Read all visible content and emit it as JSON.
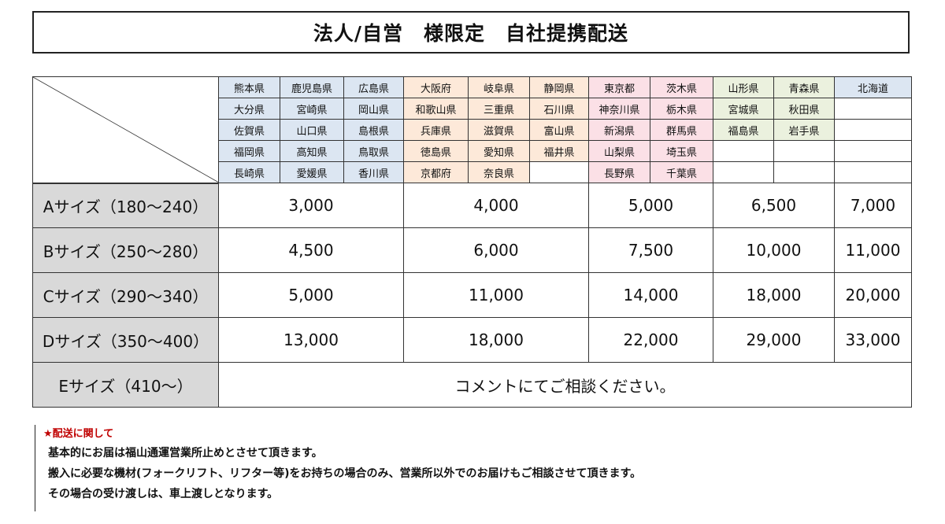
{
  "title": "法人/自営　様限定　自社提携配送",
  "regions": [
    {
      "color": "#dce6f2",
      "columns": [
        [
          "熊本県",
          "大分県",
          "佐賀県",
          "福岡県",
          "長崎県"
        ],
        [
          "鹿児島県",
          "宮崎県",
          "山口県",
          "高知県",
          "愛媛県"
        ],
        [
          "広島県",
          "岡山県",
          "島根県",
          "鳥取県",
          "香川県"
        ]
      ]
    },
    {
      "color": "#fde9d9",
      "columns": [
        [
          "大阪府",
          "和歌山県",
          "兵庫県",
          "徳島県",
          "京都府"
        ],
        [
          "岐阜県",
          "三重県",
          "滋賀県",
          "愛知県",
          "奈良県"
        ],
        [
          "静岡県",
          "石川県",
          "富山県",
          "福井県",
          ""
        ]
      ]
    },
    {
      "color": "#fbe0e6",
      "columns": [
        [
          "東京都",
          "神奈川県",
          "新潟県",
          "山梨県",
          "長野県"
        ],
        [
          "茨木県",
          "栃木県",
          "群馬県",
          "埼玉県",
          "千葉県"
        ]
      ]
    },
    {
      "color": "#ebf1de",
      "columns": [
        [
          "山形県",
          "宮城県",
          "福島県",
          "",
          ""
        ],
        [
          "青森県",
          "秋田県",
          "岩手県",
          "",
          ""
        ]
      ]
    },
    {
      "color": "#dce6f2",
      "columns": [
        [
          "北海道",
          "",
          "",
          "",
          ""
        ]
      ]
    }
  ],
  "sizes": [
    {
      "label": "Aサイズ（180～240）",
      "prices": [
        "3,000",
        "4,000",
        "5,000",
        "6,500",
        "7,000"
      ]
    },
    {
      "label": "Bサイズ（250～280）",
      "prices": [
        "4,500",
        "6,000",
        "7,500",
        "10,000",
        "11,000"
      ]
    },
    {
      "label": "Cサイズ（290～340）",
      "prices": [
        "5,000",
        "11,000",
        "14,000",
        "18,000",
        "20,000"
      ]
    },
    {
      "label": "Dサイズ（350～400）",
      "prices": [
        "13,000",
        "18,000",
        "22,000",
        "29,000",
        "33,000"
      ]
    }
  ],
  "e_size": {
    "label": "Eサイズ（410～）",
    "note": "コメントにてご相談ください。"
  },
  "notes": {
    "heading": "★配送に関して",
    "lines": [
      "基本的にお届は福山通運営業所止めとさせて頂きます。",
      "搬入に必要な機材(フォークリフト、リフター等)をお持ちの場合のみ、営業所以外でのお届けもご相談させて頂きます。",
      "その場合の受け渡しは、車上渡しとなります。"
    ]
  }
}
